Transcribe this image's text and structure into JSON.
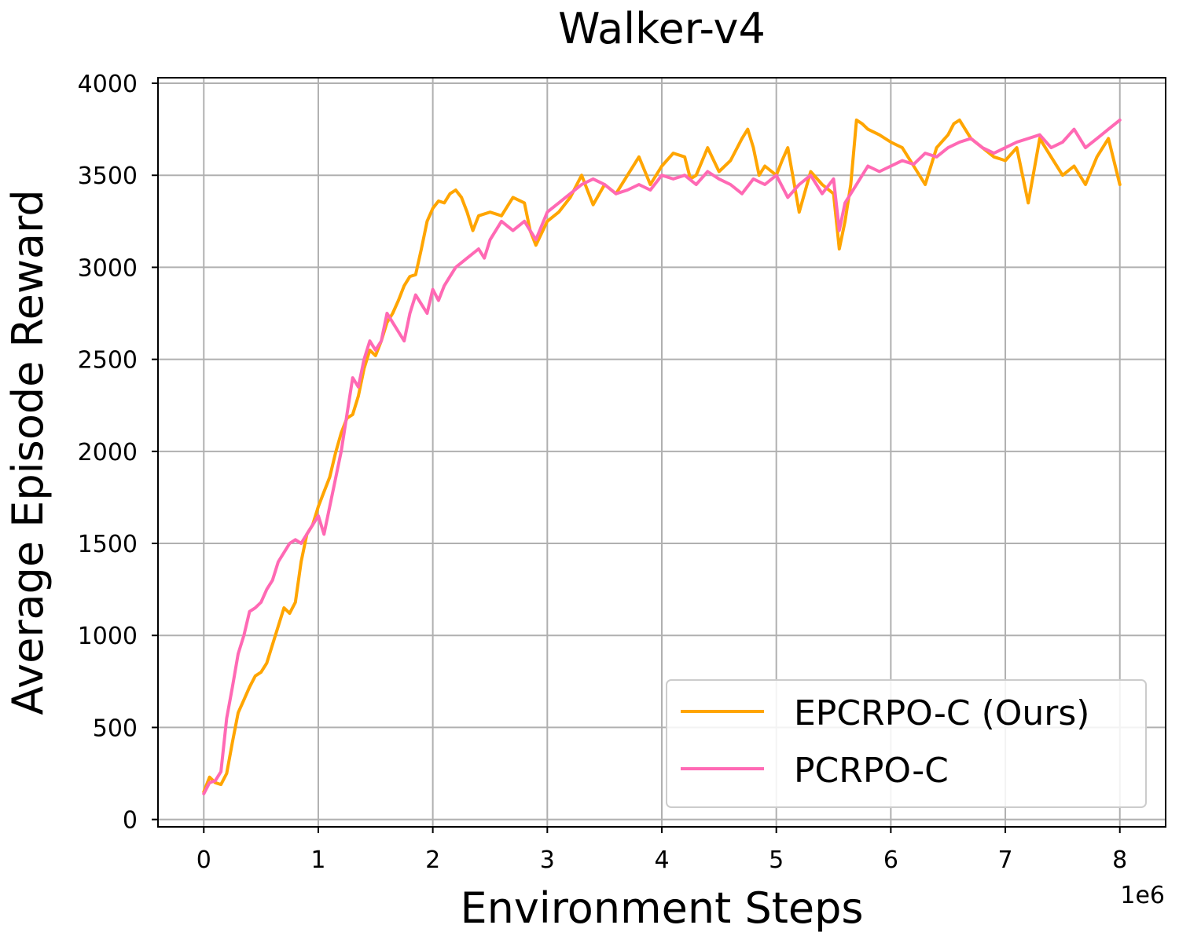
{
  "chart_data": {
    "type": "line",
    "title": "Walker-v4",
    "xlabel": "Environment Steps",
    "ylabel": "Average Episode Reward",
    "x_offset_label": "1e6",
    "xlim": [
      -0.4,
      8.4
    ],
    "ylim": [
      -40,
      4030
    ],
    "xticks": [
      0,
      1,
      2,
      3,
      4,
      5,
      6,
      7,
      8
    ],
    "xtick_labels": [
      "0",
      "1",
      "2",
      "3",
      "4",
      "5",
      "6",
      "7",
      "8"
    ],
    "yticks": [
      0,
      500,
      1000,
      1500,
      2000,
      2500,
      3000,
      3500,
      4000
    ],
    "ytick_labels": [
      "0",
      "500",
      "1000",
      "1500",
      "2000",
      "2500",
      "3000",
      "3500",
      "4000"
    ],
    "grid": true,
    "legend_position": "lower-right",
    "series": [
      {
        "name": "EPCRPO-C (Ours)",
        "color": "#FFA500",
        "x": [
          0,
          0.05,
          0.1,
          0.15,
          0.2,
          0.25,
          0.3,
          0.35,
          0.4,
          0.45,
          0.5,
          0.55,
          0.6,
          0.65,
          0.7,
          0.75,
          0.8,
          0.85,
          0.9,
          0.95,
          1.0,
          1.05,
          1.1,
          1.15,
          1.2,
          1.25,
          1.3,
          1.35,
          1.4,
          1.45,
          1.5,
          1.55,
          1.6,
          1.65,
          1.7,
          1.75,
          1.8,
          1.85,
          1.9,
          1.95,
          2.0,
          2.05,
          2.1,
          2.15,
          2.2,
          2.25,
          2.3,
          2.35,
          2.4,
          2.5,
          2.6,
          2.7,
          2.8,
          2.85,
          2.9,
          3.0,
          3.1,
          3.2,
          3.3,
          3.4,
          3.5,
          3.6,
          3.7,
          3.8,
          3.9,
          4.0,
          4.1,
          4.2,
          4.25,
          4.3,
          4.4,
          4.5,
          4.6,
          4.7,
          4.75,
          4.8,
          4.85,
          4.9,
          5.0,
          5.05,
          5.1,
          5.2,
          5.3,
          5.4,
          5.5,
          5.55,
          5.6,
          5.65,
          5.7,
          5.75,
          5.8,
          5.9,
          6.0,
          6.1,
          6.2,
          6.3,
          6.4,
          6.5,
          6.55,
          6.6,
          6.7,
          6.8,
          6.9,
          7.0,
          7.1,
          7.15,
          7.2,
          7.3,
          7.4,
          7.5,
          7.6,
          7.7,
          7.8,
          7.9,
          8.0
        ],
        "y": [
          150,
          230,
          200,
          190,
          250,
          420,
          580,
          650,
          720,
          780,
          800,
          850,
          950,
          1050,
          1150,
          1120,
          1180,
          1400,
          1550,
          1600,
          1700,
          1780,
          1860,
          1990,
          2100,
          2180,
          2200,
          2300,
          2450,
          2550,
          2520,
          2600,
          2700,
          2750,
          2820,
          2900,
          2950,
          2960,
          3100,
          3250,
          3320,
          3360,
          3350,
          3400,
          3420,
          3380,
          3300,
          3200,
          3280,
          3300,
          3280,
          3380,
          3350,
          3200,
          3120,
          3250,
          3300,
          3380,
          3500,
          3340,
          3450,
          3400,
          3500,
          3600,
          3450,
          3550,
          3620,
          3600,
          3480,
          3500,
          3650,
          3520,
          3580,
          3700,
          3750,
          3650,
          3500,
          3550,
          3500,
          3580,
          3650,
          3300,
          3520,
          3450,
          3400,
          3100,
          3250,
          3450,
          3800,
          3780,
          3750,
          3720,
          3680,
          3650,
          3550,
          3450,
          3650,
          3720,
          3780,
          3800,
          3700,
          3650,
          3600,
          3580,
          3650,
          3500,
          3350,
          3700,
          3600,
          3500,
          3550,
          3450,
          3600,
          3700,
          3450
        ]
      },
      {
        "name": "PCRPO-C",
        "color": "#FF69B4",
        "x": [
          0,
          0.05,
          0.1,
          0.15,
          0.2,
          0.25,
          0.3,
          0.35,
          0.4,
          0.45,
          0.5,
          0.55,
          0.6,
          0.65,
          0.7,
          0.75,
          0.8,
          0.85,
          0.9,
          0.95,
          1.0,
          1.05,
          1.1,
          1.15,
          1.2,
          1.25,
          1.3,
          1.35,
          1.4,
          1.45,
          1.5,
          1.55,
          1.6,
          1.65,
          1.7,
          1.75,
          1.8,
          1.85,
          1.9,
          1.95,
          2.0,
          2.05,
          2.1,
          2.15,
          2.2,
          2.3,
          2.4,
          2.45,
          2.5,
          2.6,
          2.7,
          2.8,
          2.9,
          3.0,
          3.1,
          3.2,
          3.3,
          3.4,
          3.5,
          3.6,
          3.7,
          3.8,
          3.9,
          4.0,
          4.1,
          4.2,
          4.3,
          4.4,
          4.5,
          4.6,
          4.7,
          4.8,
          4.9,
          5.0,
          5.1,
          5.2,
          5.3,
          5.4,
          5.5,
          5.55,
          5.6,
          5.7,
          5.8,
          5.9,
          6.0,
          6.1,
          6.2,
          6.3,
          6.4,
          6.5,
          6.6,
          6.7,
          6.8,
          6.9,
          7.0,
          7.1,
          7.2,
          7.3,
          7.4,
          7.5,
          7.6,
          7.7,
          7.8,
          7.9,
          8.0
        ],
        "y": [
          140,
          200,
          210,
          260,
          550,
          720,
          900,
          1000,
          1130,
          1150,
          1180,
          1250,
          1300,
          1400,
          1450,
          1500,
          1520,
          1500,
          1550,
          1600,
          1650,
          1550,
          1700,
          1850,
          2000,
          2200,
          2400,
          2350,
          2500,
          2600,
          2550,
          2600,
          2750,
          2700,
          2650,
          2600,
          2750,
          2850,
          2800,
          2750,
          2880,
          2820,
          2900,
          2950,
          3000,
          3050,
          3100,
          3050,
          3150,
          3250,
          3200,
          3250,
          3150,
          3300,
          3350,
          3400,
          3450,
          3480,
          3450,
          3400,
          3420,
          3450,
          3420,
          3500,
          3480,
          3500,
          3450,
          3520,
          3480,
          3450,
          3400,
          3480,
          3450,
          3500,
          3380,
          3450,
          3500,
          3400,
          3480,
          3200,
          3350,
          3450,
          3550,
          3520,
          3550,
          3580,
          3560,
          3620,
          3600,
          3650,
          3680,
          3700,
          3650,
          3620,
          3650,
          3680,
          3700,
          3720,
          3650,
          3680,
          3750,
          3650,
          3700,
          3750,
          3800
        ]
      }
    ]
  }
}
